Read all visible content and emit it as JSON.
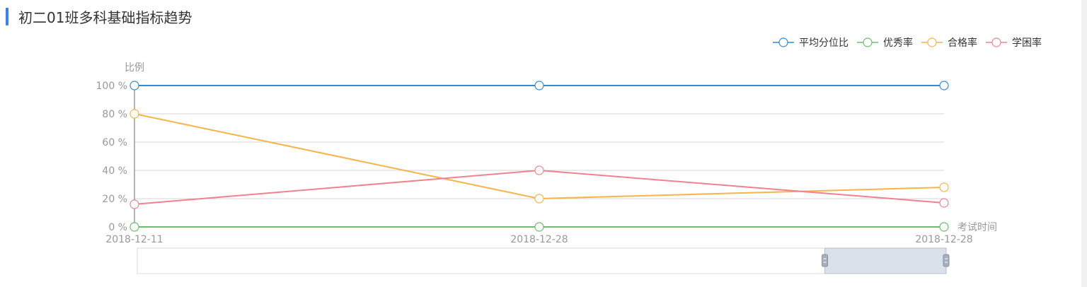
{
  "page": {
    "title": "初二01班多科基础指标趋势"
  },
  "chart_data": {
    "type": "line",
    "ylabel": "比例",
    "xlabel": "考试时间",
    "y_unit": "%",
    "ylim": [
      0,
      100
    ],
    "y_ticks": [
      0,
      20,
      40,
      60,
      80,
      100
    ],
    "categories": [
      "2018-12-11",
      "2018-12-28",
      "2018-12-28"
    ],
    "legend_position": "top-right",
    "grid": true,
    "series": [
      {
        "name": "平均分位比",
        "color": "#2f8cdb",
        "values": [
          100,
          100,
          100
        ]
      },
      {
        "name": "优秀率",
        "color": "#6abf6a",
        "values": [
          0,
          0,
          0
        ]
      },
      {
        "name": "合格率",
        "color": "#f6b44a",
        "values": [
          80,
          20,
          28
        ]
      },
      {
        "name": "学困率",
        "color": "#f0828f",
        "values": [
          16,
          40,
          17
        ]
      }
    ],
    "data_zoom": {
      "start_fraction": 0.85,
      "end_fraction": 1.0
    }
  }
}
